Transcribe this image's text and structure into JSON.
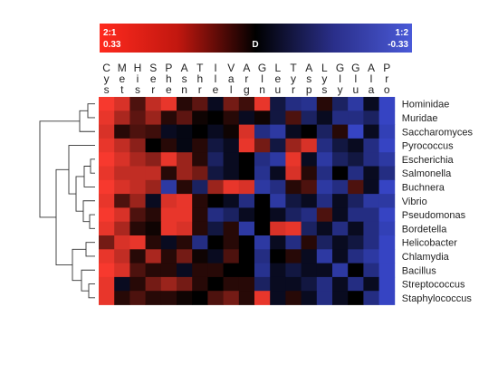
{
  "chart_data": {
    "type": "heatmap",
    "title": "",
    "color_scale": {
      "left_ratio": "2:1",
      "right_ratio": "1:2",
      "center_label": "D",
      "min_label": "0.33",
      "max_label": "-0.33",
      "range": [
        -0.33,
        0.33
      ],
      "colors": {
        "high": "#ff3b2f",
        "mid": "#000000",
        "low": "#3b4bd6"
      }
    },
    "columns": [
      {
        "name": "Cys",
        "letters": [
          "C",
          "y",
          "s"
        ]
      },
      {
        "name": "Met",
        "letters": [
          "M",
          "e",
          "t"
        ]
      },
      {
        "name": "His",
        "letters": [
          "H",
          "i",
          "s"
        ]
      },
      {
        "name": "Ser",
        "letters": [
          "S",
          "e",
          "r"
        ]
      },
      {
        "name": "Phe",
        "letters": [
          "P",
          "h",
          "e"
        ]
      },
      {
        "name": "Asn",
        "letters": [
          "A",
          "s",
          "n"
        ]
      },
      {
        "name": "Thr",
        "letters": [
          "T",
          "h",
          "r"
        ]
      },
      {
        "name": "Ile",
        "letters": [
          "I",
          "l",
          "e"
        ]
      },
      {
        "name": "Val",
        "letters": [
          "V",
          "a",
          "l"
        ]
      },
      {
        "name": "Arg",
        "letters": [
          "A",
          "r",
          "g"
        ]
      },
      {
        "name": "Gln",
        "letters": [
          "G",
          "l",
          "n"
        ]
      },
      {
        "name": "Leu",
        "letters": [
          "L",
          "e",
          "u"
        ]
      },
      {
        "name": "Tyr",
        "letters": [
          "T",
          "y",
          "r"
        ]
      },
      {
        "name": "Asp",
        "letters": [
          "A",
          "s",
          "p"
        ]
      },
      {
        "name": "Lys",
        "letters": [
          "L",
          "y",
          "s"
        ]
      },
      {
        "name": "Gly",
        "letters": [
          "G",
          "l",
          "y"
        ]
      },
      {
        "name": "Glu",
        "letters": [
          "G",
          "l",
          "u"
        ]
      },
      {
        "name": "Ala",
        "letters": [
          "A",
          "l",
          "a"
        ]
      },
      {
        "name": "Pro",
        "letters": [
          "P",
          "r",
          "o"
        ]
      }
    ],
    "rows": [
      "Hominidae",
      "Muridae",
      "Saccharomyces",
      "Pyrococcus",
      "Escherichia",
      "Salmonella",
      "Buchnera",
      "Vibrio",
      "Pseudomonas",
      "Bordetella",
      "Helicobacter",
      "Chlamydia",
      "Bacillus",
      "Streptococcus",
      "Staphylococcus"
    ],
    "values": [
      [
        0.32,
        0.28,
        0.1,
        0.25,
        0.3,
        0.05,
        0.12,
        -0.05,
        0.15,
        0.08,
        0.3,
        -0.1,
        -0.2,
        -0.22,
        0.05,
        -0.15,
        -0.25,
        -0.05,
        -0.3
      ],
      [
        0.3,
        0.22,
        0.12,
        0.2,
        0.05,
        0.12,
        0.02,
        0.0,
        0.05,
        -0.05,
        0.02,
        -0.1,
        0.1,
        -0.15,
        -0.05,
        -0.2,
        -0.2,
        -0.15,
        -0.3
      ],
      [
        0.28,
        0.05,
        0.1,
        0.08,
        -0.05,
        -0.03,
        0.0,
        -0.05,
        0.02,
        0.28,
        -0.2,
        -0.25,
        -0.05,
        0.0,
        -0.15,
        0.05,
        -0.3,
        -0.05,
        -0.28
      ],
      [
        0.3,
        0.25,
        0.18,
        0.0,
        0.05,
        -0.03,
        0.05,
        -0.1,
        -0.05,
        0.3,
        0.15,
        -0.1,
        0.2,
        0.28,
        -0.2,
        -0.1,
        -0.05,
        -0.2,
        -0.3
      ],
      [
        0.32,
        0.28,
        0.22,
        0.18,
        0.3,
        0.2,
        0.05,
        -0.15,
        -0.05,
        0.0,
        -0.2,
        -0.25,
        0.3,
        -0.05,
        -0.25,
        -0.15,
        -0.1,
        -0.2,
        -0.25
      ],
      [
        0.3,
        0.25,
        0.25,
        0.25,
        0.05,
        0.2,
        0.15,
        -0.1,
        -0.05,
        0.0,
        -0.22,
        -0.05,
        0.28,
        0.05,
        -0.2,
        0.0,
        -0.2,
        -0.05,
        -0.2
      ],
      [
        0.32,
        0.28,
        0.25,
        0.2,
        -0.25,
        0.05,
        -0.15,
        0.2,
        0.3,
        0.28,
        -0.25,
        -0.2,
        0.05,
        0.1,
        -0.25,
        -0.2,
        0.1,
        -0.05,
        -0.3
      ],
      [
        0.3,
        0.1,
        0.2,
        -0.05,
        0.28,
        0.3,
        0.05,
        0.0,
        -0.05,
        -0.2,
        0.0,
        -0.25,
        -0.1,
        -0.05,
        -0.2,
        -0.05,
        -0.15,
        -0.25,
        -0.25
      ],
      [
        0.32,
        0.28,
        0.1,
        0.05,
        0.3,
        0.3,
        0.05,
        -0.2,
        -0.15,
        -0.05,
        0.0,
        -0.05,
        -0.15,
        -0.2,
        0.1,
        -0.05,
        -0.2,
        -0.2,
        -0.3
      ],
      [
        0.3,
        0.22,
        0.05,
        0.02,
        0.3,
        0.28,
        0.05,
        -0.1,
        0.05,
        -0.25,
        0.0,
        0.28,
        0.3,
        -0.15,
        -0.05,
        -0.2,
        -0.05,
        -0.2,
        -0.28
      ],
      [
        0.15,
        0.28,
        0.3,
        0.05,
        -0.05,
        0.05,
        -0.2,
        0.0,
        0.05,
        0.0,
        -0.25,
        -0.05,
        -0.2,
        0.05,
        -0.15,
        -0.05,
        -0.1,
        -0.2,
        -0.3
      ],
      [
        0.3,
        0.25,
        0.05,
        0.22,
        0.05,
        0.15,
        0.02,
        -0.05,
        0.1,
        0.0,
        -0.2,
        0.0,
        0.05,
        -0.05,
        -0.25,
        -0.05,
        -0.2,
        -0.25,
        -0.3
      ],
      [
        0.32,
        0.28,
        0.1,
        0.05,
        0.05,
        -0.05,
        0.05,
        0.05,
        0.0,
        0.0,
        -0.22,
        -0.05,
        -0.1,
        -0.05,
        -0.05,
        -0.25,
        0.0,
        -0.2,
        -0.3
      ],
      [
        0.3,
        -0.05,
        0.05,
        0.15,
        0.2,
        0.15,
        0.05,
        0.0,
        0.05,
        0.05,
        -0.15,
        -0.05,
        -0.05,
        -0.1,
        -0.2,
        -0.05,
        -0.2,
        -0.05,
        -0.3
      ],
      [
        0.3,
        0.05,
        0.1,
        0.05,
        0.05,
        0.02,
        0.0,
        0.1,
        0.15,
        0.05,
        0.3,
        -0.05,
        0.05,
        -0.05,
        -0.2,
        -0.05,
        0.0,
        -0.2,
        -0.3
      ]
    ]
  }
}
